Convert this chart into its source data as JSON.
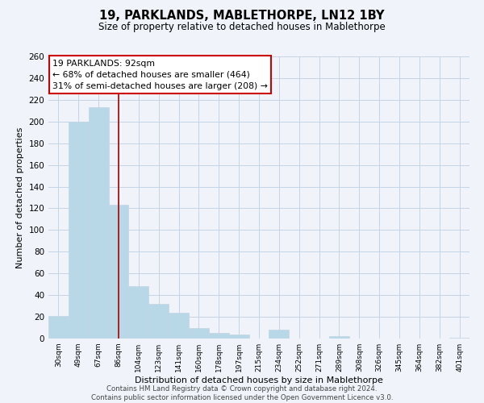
{
  "title": "19, PARKLANDS, MABLETHORPE, LN12 1BY",
  "subtitle": "Size of property relative to detached houses in Mablethorpe",
  "xlabel": "Distribution of detached houses by size in Mablethorpe",
  "ylabel": "Number of detached properties",
  "bar_labels": [
    "30sqm",
    "49sqm",
    "67sqm",
    "86sqm",
    "104sqm",
    "123sqm",
    "141sqm",
    "160sqm",
    "178sqm",
    "197sqm",
    "215sqm",
    "234sqm",
    "252sqm",
    "271sqm",
    "289sqm",
    "308sqm",
    "326sqm",
    "345sqm",
    "364sqm",
    "382sqm",
    "401sqm"
  ],
  "bar_values": [
    21,
    200,
    213,
    123,
    48,
    32,
    24,
    10,
    5,
    4,
    0,
    8,
    0,
    0,
    2,
    0,
    0,
    0,
    0,
    0,
    1
  ],
  "bar_color": "#b8d8e8",
  "property_line_x": 3.0,
  "property_line_label": "19 PARKLANDS: 92sqm",
  "annotation_line1": "← 68% of detached houses are smaller (464)",
  "annotation_line2": "31% of semi-detached houses are larger (208) →",
  "annotation_box_color": "white",
  "annotation_box_edge": "#cc0000",
  "ylim": [
    0,
    260
  ],
  "yticks": [
    0,
    20,
    40,
    60,
    80,
    100,
    120,
    140,
    160,
    180,
    200,
    220,
    240,
    260
  ],
  "footer_line1": "Contains HM Land Registry data © Crown copyright and database right 2024.",
  "footer_line2": "Contains public sector information licensed under the Open Government Licence v3.0.",
  "bg_color": "#f0f4fa",
  "grid_color": "#c5d5e5",
  "title_fontsize": 10.5,
  "subtitle_fontsize": 8.5
}
